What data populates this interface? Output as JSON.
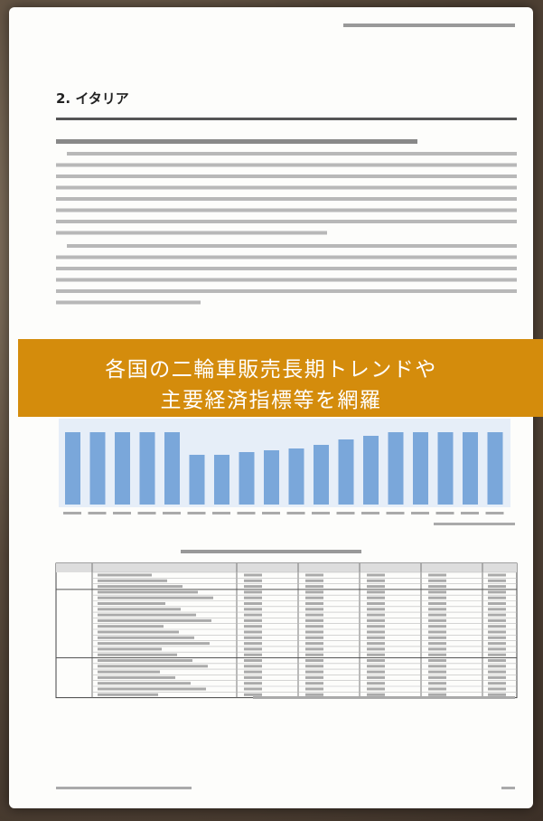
{
  "section": {
    "title": "2. イタリア"
  },
  "banner": {
    "lines": [
      "各国の二輪車販売長期トレンドや",
      "主要経済指標等を網羅"
    ]
  }
}
